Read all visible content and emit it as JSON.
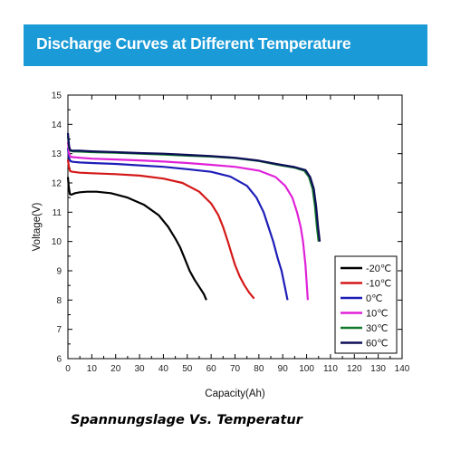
{
  "banner": {
    "title": "Discharge Curves at Different Temperature",
    "color": "#1a9ad6"
  },
  "caption": "Spannungslage Vs. Temperatur",
  "chart_data": {
    "type": "line",
    "title": "Discharge Curves at Different Temperature",
    "xlabel": "Capacity(Ah)",
    "ylabel": "Voltage(V)",
    "xlim": [
      0,
      140
    ],
    "ylim": [
      6,
      15
    ],
    "xticks": [
      0,
      10,
      20,
      30,
      40,
      50,
      60,
      70,
      80,
      90,
      100,
      110,
      120,
      130,
      140
    ],
    "yticks": [
      6,
      7,
      8,
      9,
      10,
      11,
      12,
      13,
      14,
      15
    ],
    "grid": false,
    "legend_position": "bottom-right",
    "series": [
      {
        "name": "-20℃",
        "color": "#000000",
        "x": [
          0,
          0.3,
          0.8,
          1.5,
          3,
          5,
          8,
          12,
          18,
          25,
          32,
          38,
          42,
          45,
          47,
          49,
          51,
          53,
          55,
          57,
          58
        ],
        "y": [
          12.2,
          11.9,
          11.62,
          11.6,
          11.65,
          11.68,
          11.7,
          11.7,
          11.65,
          11.5,
          11.25,
          10.9,
          10.5,
          10.1,
          9.8,
          9.4,
          9.0,
          8.7,
          8.45,
          8.2,
          8.0
        ]
      },
      {
        "name": "-10℃",
        "color": "#d41818",
        "x": [
          0,
          0.5,
          1,
          2,
          5,
          10,
          20,
          30,
          40,
          48,
          55,
          60,
          63,
          65,
          67,
          68.5,
          70,
          72,
          74,
          76,
          78
        ],
        "y": [
          12.8,
          12.5,
          12.4,
          12.38,
          12.35,
          12.33,
          12.3,
          12.25,
          12.15,
          12.0,
          11.7,
          11.3,
          10.9,
          10.5,
          10.0,
          9.6,
          9.2,
          8.8,
          8.5,
          8.25,
          8.05
        ]
      },
      {
        "name": "0℃",
        "color": "#1d1db8",
        "x": [
          0,
          0.5,
          1,
          2,
          5,
          10,
          20,
          30,
          40,
          50,
          60,
          68,
          75,
          79,
          82,
          84,
          86,
          88,
          89.5,
          91,
          92
        ],
        "y": [
          13.2,
          12.85,
          12.75,
          12.72,
          12.7,
          12.68,
          12.65,
          12.6,
          12.55,
          12.47,
          12.38,
          12.22,
          11.9,
          11.5,
          11.0,
          10.5,
          10.0,
          9.4,
          9.0,
          8.4,
          8.0
        ]
      },
      {
        "name": "10℃",
        "color": "#e021d8",
        "x": [
          0,
          0.5,
          1,
          2,
          5,
          10,
          20,
          30,
          40,
          50,
          60,
          70,
          80,
          87,
          91,
          94,
          96,
          97.5,
          98.5,
          99.5,
          100.5
        ],
        "y": [
          13.4,
          13.0,
          12.9,
          12.88,
          12.86,
          12.83,
          12.8,
          12.77,
          12.73,
          12.68,
          12.62,
          12.55,
          12.42,
          12.2,
          11.9,
          11.5,
          11.0,
          10.5,
          10.0,
          9.2,
          8.0
        ]
      },
      {
        "name": "30℃",
        "color": "#127a2a",
        "x": [
          0,
          0.5,
          1,
          2,
          5,
          10,
          20,
          30,
          40,
          50,
          60,
          70,
          80,
          88,
          95,
          99,
          101,
          102.5,
          103.5,
          104.3,
          105
        ],
        "y": [
          13.6,
          13.2,
          13.1,
          13.08,
          13.07,
          13.05,
          13.03,
          13.0,
          12.97,
          12.93,
          12.9,
          12.85,
          12.75,
          12.62,
          12.52,
          12.42,
          12.2,
          11.8,
          11.2,
          10.5,
          10.0
        ]
      },
      {
        "name": "60℃",
        "color": "#0e0e58",
        "x": [
          0,
          0.5,
          1,
          2,
          5,
          10,
          20,
          30,
          40,
          50,
          60,
          70,
          80,
          88,
          95,
          99.5,
          101.5,
          103,
          104,
          104.8,
          105.5
        ],
        "y": [
          13.7,
          13.25,
          13.12,
          13.1,
          13.1,
          13.08,
          13.05,
          13.02,
          13.0,
          12.96,
          12.92,
          12.86,
          12.76,
          12.64,
          12.54,
          12.44,
          12.2,
          11.8,
          11.2,
          10.5,
          10.0
        ]
      }
    ]
  }
}
